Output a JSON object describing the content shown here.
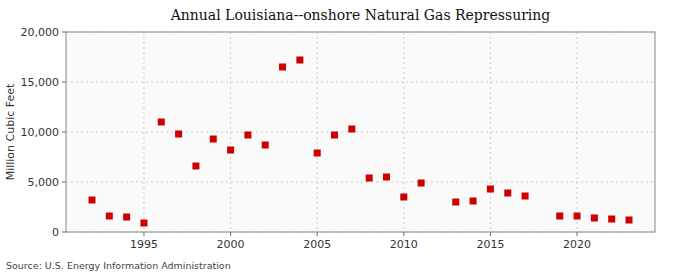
{
  "chart_data": {
    "type": "scatter",
    "title": "Annual Louisiana--onshore Natural Gas Repressuring",
    "ylabel": "Million Cubic Feet",
    "source": "Source: U.S. Energy Information Administration",
    "color": "#cc0000",
    "marker": "square",
    "grid": true,
    "xlim": [
      1990.5,
      2024.5
    ],
    "ylim": [
      0,
      20000
    ],
    "xticks": [
      1995,
      2000,
      2005,
      2010,
      2015,
      2020
    ],
    "yticks": [
      0,
      {
        "value": 5000,
        "label": "5,000"
      },
      {
        "value": 10000,
        "label": "10,000"
      },
      {
        "value": 15000,
        "label": "15,000"
      },
      {
        "value": 20000,
        "label": "20,000"
      }
    ],
    "x": [
      1992,
      1993,
      1994,
      1995,
      1996,
      1997,
      1998,
      1999,
      2000,
      2001,
      2002,
      2003,
      2004,
      2005,
      2006,
      2007,
      2008,
      2009,
      2010,
      2011,
      2013,
      2014,
      2015,
      2016,
      2017,
      2019,
      2020,
      2021,
      2022,
      2023
    ],
    "values": [
      3200,
      1600,
      1500,
      900,
      11000,
      9800,
      6600,
      9300,
      8200,
      9700,
      8700,
      16500,
      17200,
      7900,
      9700,
      10300,
      5400,
      5500,
      3500,
      4900,
      3000,
      3100,
      4300,
      3900,
      3600,
      1600,
      1600,
      1400,
      1300,
      1200
    ]
  }
}
